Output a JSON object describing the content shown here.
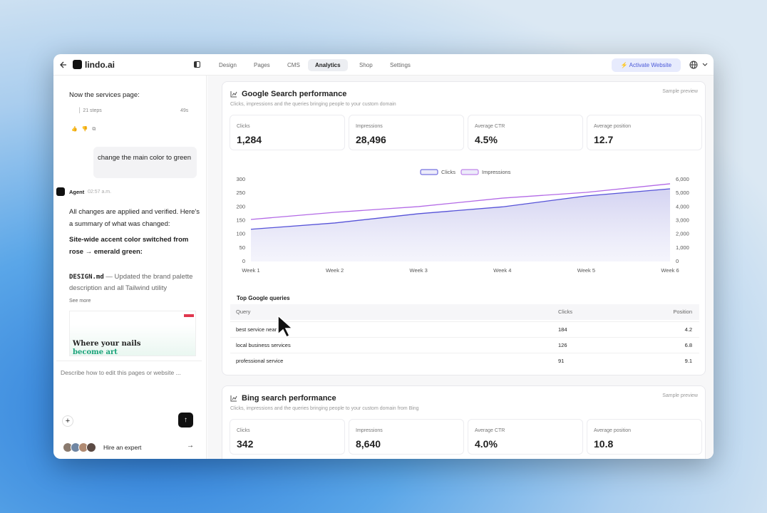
{
  "app": {
    "logo": "lindo.ai",
    "tabs": [
      "Design",
      "Pages",
      "CMS",
      "Analytics",
      "Shop",
      "Settings"
    ],
    "active_tab": 3,
    "activate_button": "Activate Website"
  },
  "chat": {
    "agent_text_1": "Now the services page:",
    "steps": "21 steps",
    "duration": "49s",
    "user_message": "change the main color to green",
    "agent_name": "Agent",
    "agent_time": "02:57 a.m.",
    "summary": "All changes are applied and verified. Here's a summary of what was changed:",
    "heading": "Site-wide accent color switched from rose → emerald green:",
    "item_code": "DESIGN.md",
    "item_text": "— Updated the brand palette description and all Tailwind utility",
    "see_more": "See more",
    "preview_headline": "Where your nails",
    "preview_accent": "become art",
    "input_placeholder": "Describe how to edit this pages or website ...",
    "hire": "Hire an expert"
  },
  "google": {
    "title": "Google Search performance",
    "badge": "Sample preview",
    "subtitle": "Clicks, impressions and the queries bringing people to your custom domain",
    "stats": [
      {
        "label": "Clicks",
        "value": "1,284"
      },
      {
        "label": "Impressions",
        "value": "28,496"
      },
      {
        "label": "Average CTR",
        "value": "4.5%"
      },
      {
        "label": "Average position",
        "value": "12.7"
      }
    ],
    "queries": {
      "title": "Top Google queries",
      "headers": [
        "Query",
        "Clicks",
        "Position"
      ],
      "rows": [
        [
          "best service near me",
          "184",
          "4.2"
        ],
        [
          "local business services",
          "126",
          "6.8"
        ],
        [
          "professional service",
          "91",
          "9.1"
        ]
      ]
    }
  },
  "chart_data": {
    "type": "line",
    "categories": [
      "Week 1",
      "Week 2",
      "Week 3",
      "Week 4",
      "Week 5",
      "Week 6"
    ],
    "series": [
      {
        "name": "Clicks",
        "color": "#5652d8",
        "area": true,
        "values": [
          118,
          141,
          175,
          200,
          240,
          266
        ]
      },
      {
        "name": "Impressions",
        "color": "#b36ae6",
        "axis": "y2",
        "values": [
          3080,
          3600,
          4020,
          4640,
          5060,
          5690
        ]
      }
    ],
    "ylim": [
      0,
      300
    ],
    "yticks": [
      0,
      50,
      100,
      150,
      200,
      250,
      300
    ],
    "y2lim": [
      0,
      6000
    ],
    "y2ticks": [
      0,
      {
        "value": 1000,
        "label": "1,000"
      },
      {
        "value": 2000,
        "label": "2,000"
      },
      {
        "value": 3000,
        "label": "3,000"
      },
      {
        "value": 4000,
        "label": "4,000"
      },
      {
        "value": 5000,
        "label": "5,000"
      },
      {
        "value": 6000,
        "label": "6,000"
      }
    ],
    "grid": false,
    "legend": "top"
  },
  "bing": {
    "title": "Bing search performance",
    "badge": "Sample preview",
    "subtitle": "Clicks, impressions and the queries bringing people to your custom domain from Bing",
    "stats": [
      {
        "label": "Clicks",
        "value": "342"
      },
      {
        "label": "Impressions",
        "value": "8,640"
      },
      {
        "label": "Average CTR",
        "value": "4.0%"
      },
      {
        "label": "Average position",
        "value": "10.8"
      }
    ]
  }
}
